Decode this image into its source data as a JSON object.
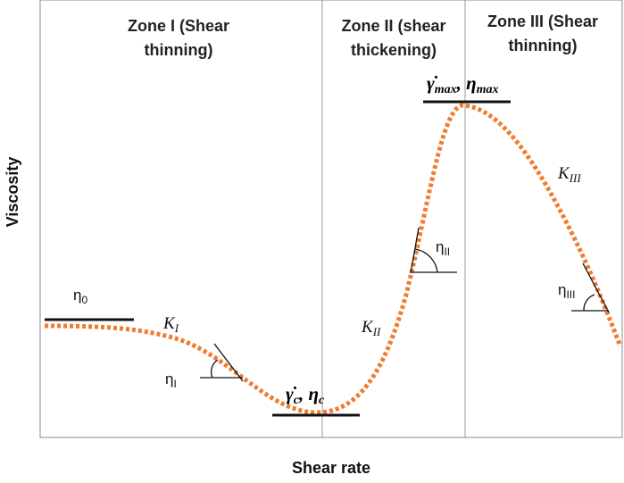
{
  "zones": [
    {
      "lines": [
        "Zone I (Shear",
        "thinning)"
      ]
    },
    {
      "lines": [
        "Zone II (shear",
        "thickening)"
      ]
    },
    {
      "lines": [
        "Zone III (Shear",
        "thinning)"
      ]
    }
  ],
  "axes": {
    "y_label": "Viscosity",
    "x_label": "Shear rate"
  },
  "annotations": {
    "eta_0": {
      "symbol": "η",
      "sub": "0"
    },
    "K_I": {
      "symbol": "K",
      "sub": "I"
    },
    "eta_I": {
      "symbol": "η",
      "sub": "I"
    },
    "critical": {
      "symbol": "γ̇",
      "sub": "c",
      "separator": ", ",
      "symbol2": "η",
      "sub2": "c"
    },
    "maximum": {
      "symbol": "γ̇",
      "sub": "max",
      "separator": ", ",
      "symbol2": "η",
      "sub2": "max"
    },
    "eta_II": {
      "symbol": "η",
      "sub": "II"
    },
    "K_II": {
      "symbol": "K",
      "sub": "II"
    },
    "K_III": {
      "symbol": "K",
      "sub": "III"
    },
    "eta_III": {
      "symbol": "η",
      "sub": "III"
    }
  }
}
